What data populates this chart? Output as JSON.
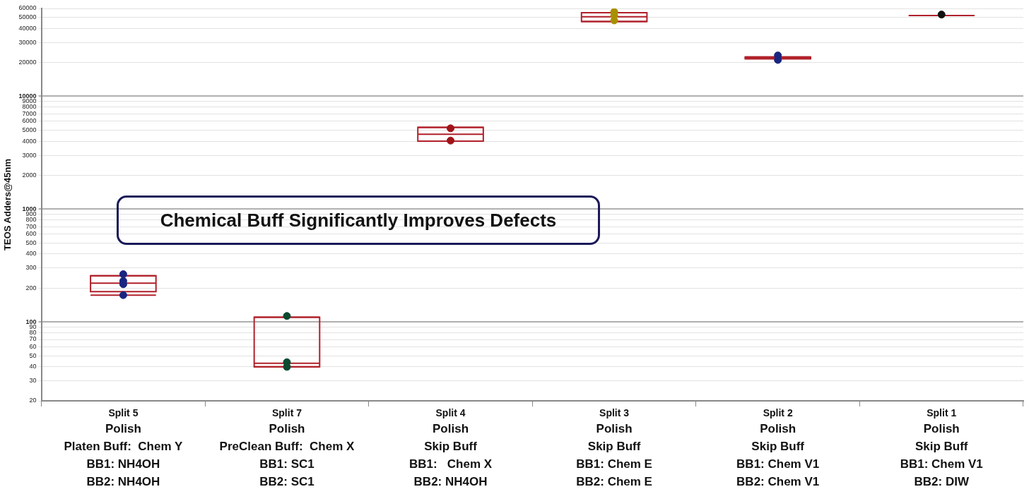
{
  "chart_data": {
    "type": "box",
    "ylabel": "TEOS Adders@45nm",
    "categories": [
      "Split 5",
      "Split 7",
      "Split 4",
      "Split 3",
      "Split 2",
      "Split 1"
    ],
    "boxes": [
      {
        "low": 173,
        "q1": 186,
        "median": 221,
        "q3": 257,
        "high": 257
      },
      {
        "low": 40,
        "q1": 40,
        "median": 43,
        "q3": 110,
        "high": 110
      },
      {
        "low": 4000,
        "q1": 4000,
        "median": 4600,
        "q3": 5300,
        "high": 5300
      },
      {
        "low": 46000,
        "q1": 46000,
        "median": 50700,
        "q3": 55000,
        "high": 55000
      },
      {
        "low": 21500,
        "q1": 21500,
        "median": 22000,
        "q3": 22300,
        "high": 22300
      },
      {
        "low": 52000,
        "q1": 52000,
        "median": 52000,
        "q3": 52000,
        "high": 52000
      }
    ],
    "color": "#b0202a",
    "series": [
      {
        "type": "scatter",
        "x": [
          "Split 5",
          "Split 5",
          "Split 5",
          "Split 5",
          "Split 7",
          "Split 7",
          "Split 7",
          "Split 4",
          "Split 4",
          "Split 3",
          "Split 3",
          "Split 3",
          "Split 2",
          "Split 2",
          "Split 1",
          "Split 1"
        ],
        "values": [
          265,
          231,
          216,
          173,
          113,
          44,
          40,
          5200,
          4050,
          56000,
          52000,
          47000,
          23000,
          21000,
          53000,
          null
        ],
        "colors": [
          "#1a2580",
          "#1a2580",
          "#1a2580",
          "#1a2580",
          "#0b4a30",
          "#0b4a30",
          "#0b4a30",
          "#a01418",
          "#a01418",
          "#a89000",
          "#a89000",
          "#a89000",
          "#1a2580",
          "#1a2580",
          "#111111",
          "#111111"
        ]
      }
    ],
    "log": true,
    "ylim": [
      20,
      60000
    ],
    "yticks": [
      20,
      30,
      40,
      50,
      60,
      70,
      80,
      90,
      100,
      200,
      300,
      400,
      500,
      600,
      700,
      800,
      900,
      1000,
      2000,
      3000,
      4000,
      5000,
      6000,
      7000,
      8000,
      9000,
      10000,
      20000,
      30000,
      40000,
      50000,
      60000
    ],
    "grid": "y",
    "legend": false,
    "marker": "circle",
    "annotations": [
      "Chemical Buff Significantly Improves Defects",
      "Polish\nPlaten Buff:  Chem Y\nBB1: NH4OH\nBB2: NH4OH",
      "Polish\nPreClean Buff:  Chem X\nBB1: SC1\nBB2: SC1",
      "Polish\nSkip Buff\nBB1:   Chem X\nBB2: NH4OH",
      "Polish\nSkip Buff\nBB1: Chem E\nBB2: Chem E",
      "Polish\nSkip Buff\nBB1: Chem V1\nBB2: Chem V1",
      "Polish\nSkip Buff\nBB1: Chem V1\nBB2: DIW"
    ]
  }
}
